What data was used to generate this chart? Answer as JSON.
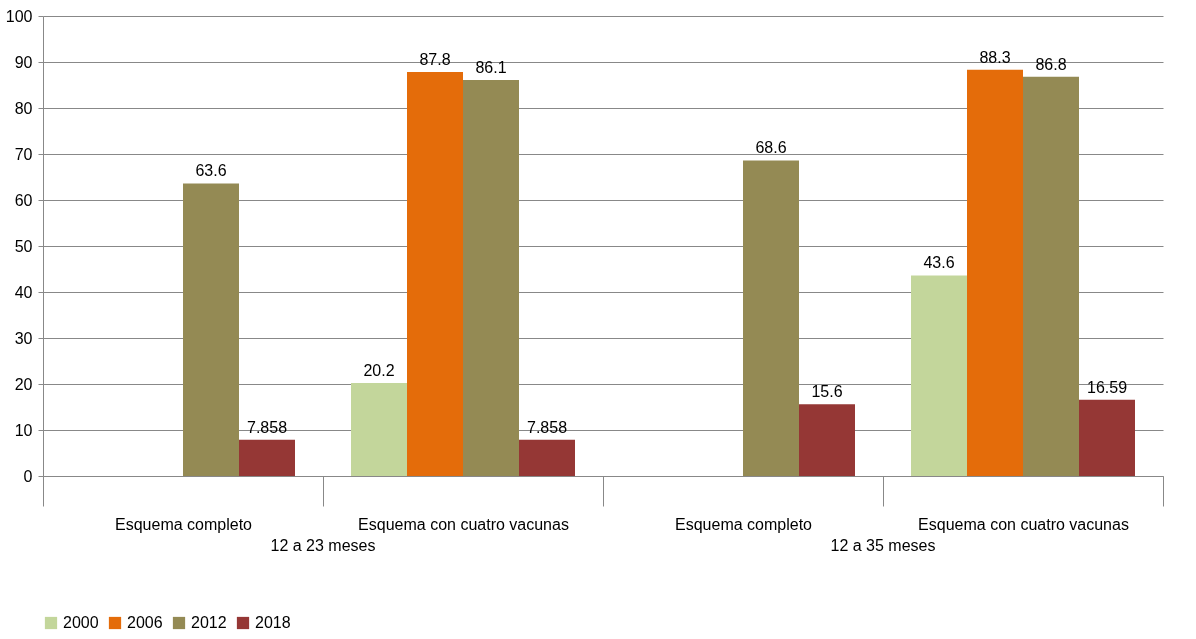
{
  "chart_data": {
    "type": "bar",
    "categories": [
      "Esquema completo",
      "Esquema con cuatro vacunas",
      "Esquema completo",
      "Esquema con cuatro vacunas"
    ],
    "annotations": [
      "12 a 23 meses",
      "12 a 35 meses"
    ],
    "series": [
      {
        "name": "2000",
        "color": "#c3d69b",
        "values": [
          null,
          20.2,
          null,
          43.6
        ]
      },
      {
        "name": "2006",
        "color": "#e46c0a",
        "values": [
          null,
          87.8,
          null,
          88.3
        ]
      },
      {
        "name": "2012",
        "color": "#948a54",
        "values": [
          63.6,
          86.1,
          68.6,
          86.8
        ]
      },
      {
        "name": "2018",
        "color": "#953735",
        "values": [
          7.858,
          7.858,
          15.6,
          16.59
        ]
      }
    ],
    "ylim": [
      0,
      100
    ],
    "yticks": [
      0,
      10,
      20,
      30,
      40,
      50,
      60,
      70,
      80,
      90,
      100
    ],
    "grid": "y",
    "legend": "bottom",
    "data_labels": true
  }
}
